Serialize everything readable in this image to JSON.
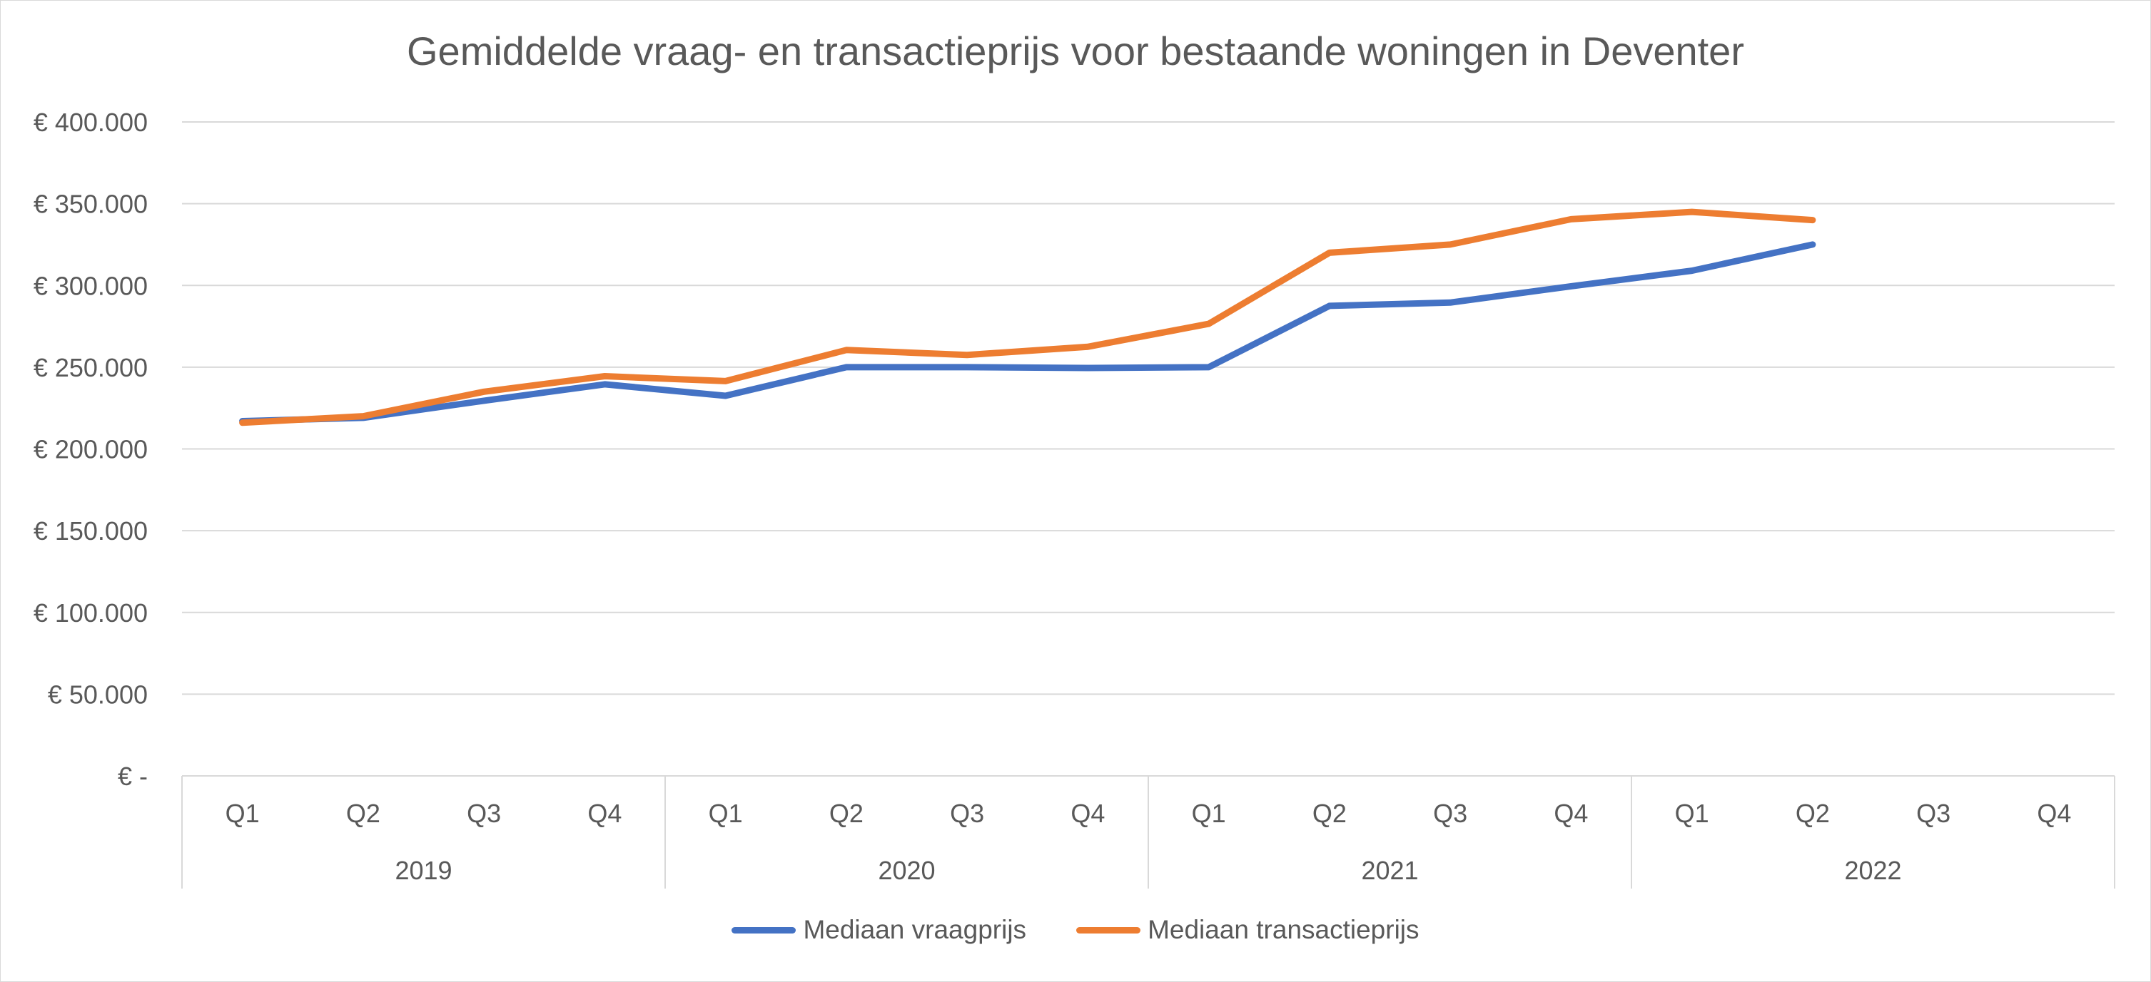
{
  "chart_data": {
    "type": "line",
    "title": "Gemiddelde vraag- en transactieprijs voor bestaande woningen in Deventer",
    "xlabel": "",
    "ylabel": "",
    "ylim": [
      0,
      400000
    ],
    "yticks": [
      0,
      50000,
      100000,
      150000,
      200000,
      250000,
      300000,
      350000,
      400000
    ],
    "ytick_labels": [
      "€ -",
      "€ 50.000",
      "€ 100.000",
      "€ 150.000",
      "€ 200.000",
      "€ 250.000",
      "€ 300.000",
      "€ 350.000",
      "€ 400.000"
    ],
    "categories": [
      "Q1",
      "Q2",
      "Q3",
      "Q4",
      "Q1",
      "Q2",
      "Q3",
      "Q4",
      "Q1",
      "Q2",
      "Q3",
      "Q4",
      "Q1",
      "Q2",
      "Q3",
      "Q4"
    ],
    "groups": [
      {
        "label": "2019",
        "size": 4
      },
      {
        "label": "2020",
        "size": 4
      },
      {
        "label": "2021",
        "size": 4
      },
      {
        "label": "2022",
        "size": 4
      }
    ],
    "grid": true,
    "legend_position": "bottom",
    "series": [
      {
        "name": "Mediaan vraagprijs",
        "color": "#4472c4",
        "values": [
          217000,
          219000,
          229500,
          239500,
          232500,
          250000,
          250000,
          249500,
          250000,
          287500,
          289500,
          299500,
          309000,
          325000,
          null,
          null
        ]
      },
      {
        "name": "Mediaan transactieprijs",
        "color": "#ed7d31",
        "values": [
          216000,
          220000,
          235000,
          244500,
          241500,
          260500,
          257500,
          262500,
          276500,
          320000,
          325000,
          340500,
          345000,
          340000,
          null,
          null
        ]
      }
    ]
  },
  "colors": {
    "gridline": "#d9d9d9",
    "text": "#595959",
    "axis": "#d9d9d9"
  }
}
